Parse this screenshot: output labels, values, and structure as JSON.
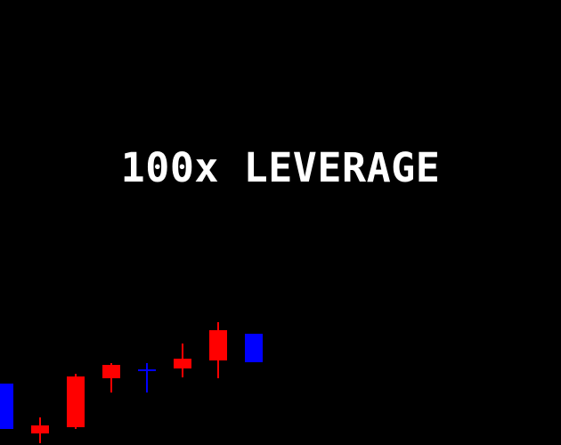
{
  "screen": {
    "headline": "100x LEVERAGE"
  },
  "colors": {
    "background": "#000000",
    "text": "#ffffff",
    "bullish": "#0000ff",
    "bearish": "#ff0000"
  },
  "chart_data": {
    "type": "candlestick",
    "title": "",
    "xlabel": "",
    "ylabel": "",
    "axes_visible": false,
    "grid": false,
    "legend": "none",
    "ylim": [
      0,
      140
    ],
    "candles": [
      {
        "index": 0,
        "direction": "up",
        "open": 18,
        "close": 69,
        "high": 69,
        "low": 18
      },
      {
        "index": 1,
        "direction": "down",
        "open": 22,
        "close": 13,
        "high": 31,
        "low": 2
      },
      {
        "index": 2,
        "direction": "down",
        "open": 77,
        "close": 20,
        "high": 80,
        "low": 18
      },
      {
        "index": 3,
        "direction": "down",
        "open": 90,
        "close": 75,
        "high": 92,
        "low": 59
      },
      {
        "index": 4,
        "direction": "up",
        "open": 84,
        "close": 85,
        "high": 92,
        "low": 59
      },
      {
        "index": 5,
        "direction": "down",
        "open": 97,
        "close": 86,
        "high": 114,
        "low": 76
      },
      {
        "index": 6,
        "direction": "down",
        "open": 129,
        "close": 95,
        "high": 138,
        "low": 75
      },
      {
        "index": 7,
        "direction": "up",
        "open": 93,
        "close": 125,
        "high": 125,
        "low": 93
      }
    ]
  }
}
